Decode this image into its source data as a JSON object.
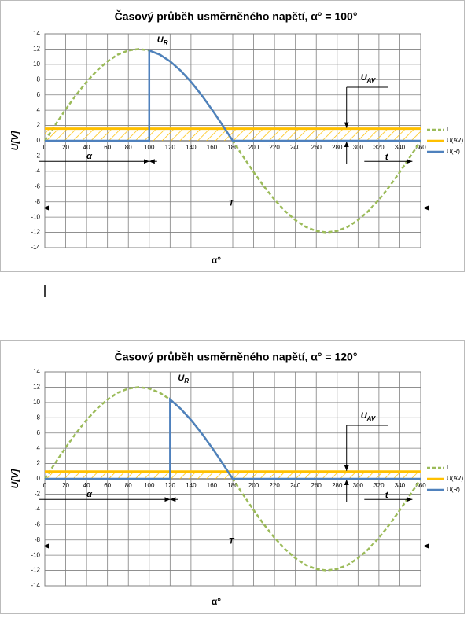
{
  "chart_data": [
    {
      "type": "line",
      "title": "Časový průběh usměrněného napětí, α° = 100°",
      "x_label": "α°",
      "y_label": "U[V]",
      "xlim": [
        0,
        360
      ],
      "ylim": [
        -14,
        14
      ],
      "xticks": [
        0,
        20,
        40,
        60,
        80,
        100,
        120,
        140,
        160,
        180,
        200,
        220,
        240,
        260,
        280,
        300,
        320,
        340,
        360
      ],
      "yticks": [
        -14,
        -12,
        -10,
        -8,
        -6,
        -4,
        -2,
        0,
        2,
        4,
        6,
        8,
        10,
        12,
        14
      ],
      "grid": true,
      "legend": "right",
      "series": [
        {
          "name": "L",
          "color": "#9bbb59",
          "dash": true,
          "x": [
            0,
            10,
            20,
            30,
            40,
            50,
            60,
            70,
            80,
            90,
            100,
            110,
            120,
            130,
            140,
            150,
            160,
            170,
            180,
            190,
            200,
            210,
            220,
            230,
            240,
            250,
            260,
            270,
            280,
            290,
            300,
            310,
            320,
            330,
            340,
            350,
            360
          ],
          "values": [
            0,
            2.08,
            4.1,
            6,
            7.71,
            9.19,
            10.39,
            11.28,
            11.82,
            12,
            11.82,
            11.28,
            10.39,
            9.19,
            7.71,
            6,
            4.1,
            2.08,
            0,
            -2.08,
            -4.1,
            -6,
            -7.71,
            -9.19,
            -10.39,
            -11.28,
            -11.82,
            -12,
            -11.82,
            -11.28,
            -10.39,
            -9.19,
            -7.71,
            -6,
            -4.1,
            -2.08,
            0
          ]
        },
        {
          "name": "U(AV)",
          "color": "#ffc000",
          "hatch": true,
          "x": [
            0,
            360
          ],
          "values": [
            1.58,
            1.58
          ]
        },
        {
          "name": "U(R)",
          "color": "#4f81bd",
          "x": [
            0,
            100,
            100,
            110,
            120,
            130,
            140,
            150,
            160,
            170,
            180,
            360
          ],
          "values": [
            0,
            0,
            11.82,
            11.28,
            10.39,
            9.19,
            7.71,
            6,
            4.1,
            2.08,
            0,
            0
          ]
        }
      ],
      "annotations": [
        {
          "text": "U",
          "sub": "R"
        },
        {
          "text": "U",
          "sub": "AV"
        },
        "α",
        "T",
        "t"
      ]
    },
    {
      "type": "line",
      "title": "Časový průběh usměrněného napětí, α° = 120°",
      "x_label": "α°",
      "y_label": "U[V]",
      "xlim": [
        0,
        360
      ],
      "ylim": [
        -14,
        14
      ],
      "xticks": [
        0,
        20,
        40,
        60,
        80,
        100,
        120,
        140,
        160,
        180,
        200,
        220,
        240,
        260,
        280,
        300,
        320,
        340,
        360
      ],
      "yticks": [
        -14,
        -12,
        -10,
        -8,
        -6,
        -4,
        -2,
        0,
        2,
        4,
        6,
        8,
        10,
        12,
        14
      ],
      "grid": true,
      "legend": "right",
      "series": [
        {
          "name": "L",
          "color": "#9bbb59",
          "dash": true,
          "x": [
            0,
            10,
            20,
            30,
            40,
            50,
            60,
            70,
            80,
            90,
            100,
            110,
            120,
            130,
            140,
            150,
            160,
            170,
            180,
            190,
            200,
            210,
            220,
            230,
            240,
            250,
            260,
            270,
            280,
            290,
            300,
            310,
            320,
            330,
            340,
            350,
            360
          ],
          "values": [
            0,
            2.08,
            4.1,
            6,
            7.71,
            9.19,
            10.39,
            11.28,
            11.82,
            12,
            11.82,
            11.28,
            10.39,
            9.19,
            7.71,
            6,
            4.1,
            2.08,
            0,
            -2.08,
            -4.1,
            -6,
            -7.71,
            -9.19,
            -10.39,
            -11.28,
            -11.82,
            -12,
            -11.82,
            -11.28,
            -10.39,
            -9.19,
            -7.71,
            -6,
            -4.1,
            -2.08,
            0
          ]
        },
        {
          "name": "U(AV)",
          "color": "#ffc000",
          "hatch": true,
          "x": [
            0,
            360
          ],
          "values": [
            0.95,
            0.95
          ]
        },
        {
          "name": "U(R)",
          "color": "#4f81bd",
          "x": [
            0,
            120,
            120,
            130,
            140,
            150,
            160,
            170,
            180,
            360
          ],
          "values": [
            0,
            0,
            10.39,
            9.19,
            7.71,
            6,
            4.1,
            2.08,
            0,
            0
          ]
        }
      ],
      "annotations": [
        {
          "text": "U",
          "sub": "R"
        },
        {
          "text": "U",
          "sub": "AV"
        },
        "α",
        "T",
        "t"
      ]
    }
  ]
}
